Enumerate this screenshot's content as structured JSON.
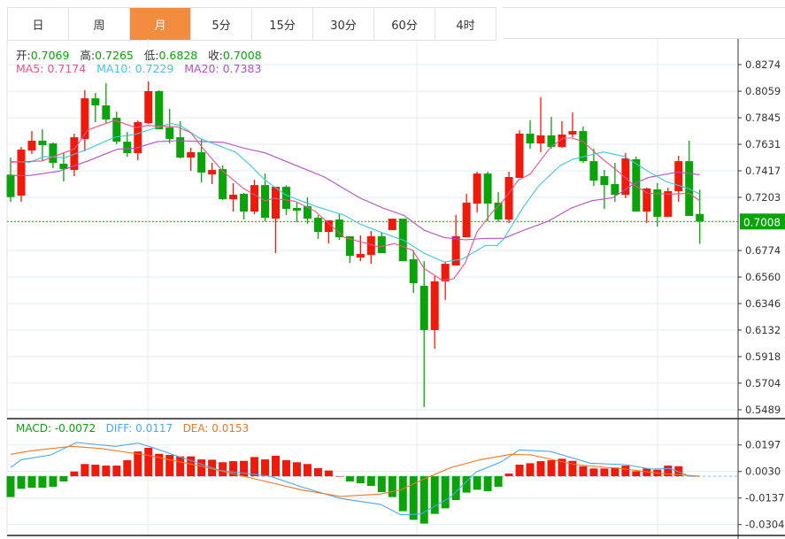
{
  "tabs": [
    {
      "label": "日",
      "active": false
    },
    {
      "label": "周",
      "active": false
    },
    {
      "label": "月",
      "active": true
    },
    {
      "label": "5分",
      "active": false
    },
    {
      "label": "15分",
      "active": false
    },
    {
      "label": "30分",
      "active": false
    },
    {
      "label": "60分",
      "active": false
    },
    {
      "label": "4时",
      "active": false
    }
  ],
  "ohlc_info": {
    "open_label": "开:",
    "open": "0.7069",
    "high_label": "高:",
    "high": "0.7265",
    "low_label": "低:",
    "low": "0.6828",
    "close_label": "收:",
    "close": "0.7008"
  },
  "ma_info": {
    "ma5": "MA5: 0.7174",
    "ma10": "MA10: 0.7229",
    "ma20": "MA20: 0.7383"
  },
  "macd_info": {
    "macd": "MACD: -0.0072",
    "diff": "DIFF: 0.0117",
    "dea": "DEA: 0.0153"
  },
  "colors": {
    "up": "#F01A0A",
    "down": "#0AA30A",
    "ma5": "#F0508C",
    "ma10": "#3CC8DC",
    "ma20": "#B450C8",
    "diff": "#4AA8F0",
    "dea": "#F07820",
    "active_tab": "#F28C3E"
  },
  "chart_data": {
    "type": "candlestick",
    "price_axis": {
      "ticks": [
        "0.8274",
        "0.8059",
        "0.7845",
        "0.7631",
        "0.7417",
        "0.7203",
        "0.6774",
        "0.6560",
        "0.6346",
        "0.6132",
        "0.5918",
        "0.5704",
        "0.5489"
      ],
      "range": [
        0.5489,
        0.8274
      ]
    },
    "current_price": "0.7008",
    "candles": [
      [
        0.7386,
        0.7524,
        0.7167,
        0.7205
      ],
      [
        0.7217,
        0.761,
        0.7167,
        0.7588
      ],
      [
        0.7581,
        0.7738,
        0.7552,
        0.766
      ],
      [
        0.766,
        0.7752,
        0.7495,
        0.7624
      ],
      [
        0.7638,
        0.7645,
        0.7438,
        0.7481
      ],
      [
        0.7474,
        0.756,
        0.7331,
        0.7431
      ],
      [
        0.7424,
        0.7717,
        0.7374,
        0.7688
      ],
      [
        0.7674,
        0.8067,
        0.7574,
        0.8002
      ],
      [
        0.8002,
        0.8045,
        0.781,
        0.7945
      ],
      [
        0.7945,
        0.8124,
        0.7802,
        0.7831
      ],
      [
        0.7845,
        0.7895,
        0.7631,
        0.7652
      ],
      [
        0.7652,
        0.7731,
        0.7531,
        0.756
      ],
      [
        0.756,
        0.7824,
        0.7503,
        0.781
      ],
      [
        0.7802,
        0.8138,
        0.7795,
        0.806
      ],
      [
        0.806,
        0.8067,
        0.7752,
        0.7752
      ],
      [
        0.7767,
        0.7917,
        0.7638,
        0.7674
      ],
      [
        0.7688,
        0.7817,
        0.7517,
        0.7524
      ],
      [
        0.7524,
        0.7603,
        0.7417,
        0.7567
      ],
      [
        0.7567,
        0.7674,
        0.7324,
        0.7403
      ],
      [
        0.7388,
        0.7481,
        0.731,
        0.7424
      ],
      [
        0.7431,
        0.746,
        0.7181,
        0.7188
      ],
      [
        0.7188,
        0.7317,
        0.7088,
        0.7224
      ],
      [
        0.7231,
        0.7238,
        0.7024,
        0.7088
      ],
      [
        0.7088,
        0.7345,
        0.7067,
        0.7302
      ],
      [
        0.7302,
        0.7395,
        0.701,
        0.7038
      ],
      [
        0.7031,
        0.7288,
        0.6753,
        0.7288
      ],
      [
        0.7288,
        0.73,
        0.706,
        0.711
      ],
      [
        0.7117,
        0.7167,
        0.7003,
        0.7095
      ],
      [
        0.7131,
        0.7203,
        0.6989,
        0.7031
      ],
      [
        0.7038,
        0.706,
        0.6867,
        0.6924
      ],
      [
        0.6924,
        0.7017,
        0.6831,
        0.7017
      ],
      [
        0.7024,
        0.7074,
        0.686,
        0.6881
      ],
      [
        0.6889,
        0.6889,
        0.6674,
        0.6731
      ],
      [
        0.6717,
        0.6896,
        0.6688,
        0.6746
      ],
      [
        0.6739,
        0.6931,
        0.6667,
        0.6889
      ],
      [
        0.6889,
        0.6917,
        0.6753,
        0.6753
      ],
      [
        0.6939,
        0.7031,
        0.6939,
        0.7031
      ],
      [
        0.7031,
        0.7031,
        0.6688,
        0.6688
      ],
      [
        0.6703,
        0.6774,
        0.6432,
        0.651
      ],
      [
        0.6489,
        0.6688,
        0.5511,
        0.6132
      ],
      [
        0.6132,
        0.6567,
        0.5982,
        0.6525
      ],
      [
        0.6525,
        0.6681,
        0.6375,
        0.6667
      ],
      [
        0.6653,
        0.706,
        0.6653,
        0.6889
      ],
      [
        0.6881,
        0.7231,
        0.6881,
        0.716
      ],
      [
        0.7153,
        0.741,
        0.7081,
        0.7395
      ],
      [
        0.7395,
        0.741,
        0.701,
        0.7153
      ],
      [
        0.716,
        0.7245,
        0.7003,
        0.7024
      ],
      [
        0.7024,
        0.741,
        0.6996,
        0.7367
      ],
      [
        0.736,
        0.7745,
        0.736,
        0.7717
      ],
      [
        0.7717,
        0.7824,
        0.7595,
        0.7638
      ],
      [
        0.7638,
        0.801,
        0.7567,
        0.7703
      ],
      [
        0.7703,
        0.7852,
        0.7595,
        0.761
      ],
      [
        0.761,
        0.7817,
        0.7603,
        0.771
      ],
      [
        0.771,
        0.7888,
        0.7688,
        0.7738
      ],
      [
        0.7738,
        0.7774,
        0.7481,
        0.7495
      ],
      [
        0.7495,
        0.7595,
        0.7295,
        0.7338
      ],
      [
        0.7374,
        0.7424,
        0.711,
        0.7302
      ],
      [
        0.731,
        0.7481,
        0.7167,
        0.7224
      ],
      [
        0.7224,
        0.756,
        0.7196,
        0.7517
      ],
      [
        0.751,
        0.7531,
        0.7088,
        0.7088
      ],
      [
        0.7088,
        0.7281,
        0.6996,
        0.7274
      ],
      [
        0.7267,
        0.7317,
        0.6967,
        0.7046
      ],
      [
        0.7046,
        0.7281,
        0.7046,
        0.7253
      ],
      [
        0.7253,
        0.7538,
        0.7167,
        0.7495
      ],
      [
        0.7495,
        0.766,
        0.7053,
        0.7053
      ],
      [
        0.7069,
        0.7265,
        0.6828,
        0.7008
      ]
    ],
    "ma5": [
      [
        0,
        0.7486
      ],
      [
        3,
        0.7497
      ],
      [
        5,
        0.7562
      ],
      [
        6,
        0.7593
      ],
      [
        7.3,
        0.7748
      ],
      [
        9.8,
        0.7824
      ],
      [
        11.8,
        0.7767
      ],
      [
        12.9,
        0.7783
      ],
      [
        15.7,
        0.7772
      ],
      [
        17,
        0.7724
      ],
      [
        18.2,
        0.7593
      ],
      [
        20,
        0.7415
      ],
      [
        22,
        0.7272
      ],
      [
        24,
        0.7176
      ],
      [
        24.8,
        0.7195
      ],
      [
        26.8,
        0.7172
      ],
      [
        28.7,
        0.7093
      ],
      [
        31.5,
        0.6879
      ],
      [
        34.8,
        0.6803
      ],
      [
        36.2,
        0.6831
      ],
      [
        37.9,
        0.6777
      ],
      [
        39,
        0.663
      ],
      [
        40.7,
        0.6534
      ],
      [
        41.8,
        0.6546
      ],
      [
        42.9,
        0.6677
      ],
      [
        44,
        0.6926
      ],
      [
        45.4,
        0.7081
      ],
      [
        46.5,
        0.7181
      ],
      [
        47.9,
        0.7343
      ],
      [
        49,
        0.739
      ],
      [
        50.9,
        0.7605
      ],
      [
        52.1,
        0.7681
      ],
      [
        53,
        0.7681
      ],
      [
        54,
        0.7652
      ],
      [
        55.7,
        0.7522
      ],
      [
        57.1,
        0.7426
      ],
      [
        58.7,
        0.7307
      ],
      [
        60.1,
        0.7236
      ],
      [
        62.3,
        0.7229
      ],
      [
        64,
        0.7236
      ],
      [
        65,
        0.7176
      ]
    ],
    "ma10": [
      [
        0,
        0.7493
      ],
      [
        1.8,
        0.7486
      ],
      [
        3.2,
        0.7533
      ],
      [
        5.1,
        0.7522
      ],
      [
        7.3,
        0.7593
      ],
      [
        9.8,
        0.7688
      ],
      [
        11.8,
        0.7712
      ],
      [
        13.8,
        0.7767
      ],
      [
        15.1,
        0.78
      ],
      [
        16,
        0.7783
      ],
      [
        17.9,
        0.7676
      ],
      [
        20.1,
        0.7605
      ],
      [
        21.2,
        0.7569
      ],
      [
        22.6,
        0.7462
      ],
      [
        24,
        0.7343
      ],
      [
        25.9,
        0.7224
      ],
      [
        28.7,
        0.7133
      ],
      [
        31.5,
        0.7057
      ],
      [
        32.9,
        0.699
      ],
      [
        34.8,
        0.6926
      ],
      [
        37.1,
        0.6855
      ],
      [
        39,
        0.6753
      ],
      [
        40.9,
        0.6681
      ],
      [
        42.6,
        0.6705
      ],
      [
        44.8,
        0.6815
      ],
      [
        45.9,
        0.6815
      ],
      [
        46.5,
        0.6867
      ],
      [
        48.4,
        0.7129
      ],
      [
        49.8,
        0.7295
      ],
      [
        51.8,
        0.7457
      ],
      [
        53,
        0.751
      ],
      [
        55.9,
        0.7569
      ],
      [
        57.9,
        0.7533
      ],
      [
        60.1,
        0.7415
      ],
      [
        61.8,
        0.7331
      ],
      [
        64,
        0.7272
      ],
      [
        65,
        0.7229
      ]
    ],
    "ma20": [
      [
        0,
        0.7379
      ],
      [
        1.8,
        0.7379
      ],
      [
        4.6,
        0.7415
      ],
      [
        7.3,
        0.7497
      ],
      [
        10.1,
        0.7593
      ],
      [
        11.8,
        0.76
      ],
      [
        13.8,
        0.7652
      ],
      [
        15.7,
        0.766
      ],
      [
        18.4,
        0.7652
      ],
      [
        20.1,
        0.7647
      ],
      [
        22,
        0.76
      ],
      [
        24,
        0.7562
      ],
      [
        29.6,
        0.7367
      ],
      [
        32.9,
        0.72
      ],
      [
        35.1,
        0.7117
      ],
      [
        37.1,
        0.7057
      ],
      [
        39,
        0.6938
      ],
      [
        40.9,
        0.6879
      ],
      [
        42.9,
        0.686
      ],
      [
        44.8,
        0.6872
      ],
      [
        46.5,
        0.6872
      ],
      [
        48.4,
        0.6938
      ],
      [
        50.7,
        0.701
      ],
      [
        52.9,
        0.7117
      ],
      [
        54.8,
        0.7176
      ],
      [
        56.8,
        0.72
      ],
      [
        58.7,
        0.7307
      ],
      [
        60.1,
        0.7362
      ],
      [
        62.9,
        0.7407
      ],
      [
        65,
        0.7386
      ]
    ],
    "macd_axis": {
      "ticks": [
        "0.0197",
        "0.0030",
        "-0.0137",
        "-0.0304"
      ]
    },
    "macd_hist": [
      -0.0131,
      -0.0079,
      -0.0072,
      -0.0072,
      -0.0066,
      -0.0033,
      0.003,
      0.0077,
      0.0073,
      0.0067,
      0.0067,
      0.0101,
      0.0156,
      0.0179,
      0.0141,
      0.0134,
      0.0125,
      0.0125,
      0.0106,
      0.0104,
      0.0088,
      0.0095,
      0.0097,
      0.0121,
      0.0106,
      0.0129,
      0.0101,
      0.0088,
      0.0077,
      0.0051,
      0.0036,
      0,
      -0.0033,
      -0.0044,
      -0.0061,
      -0.01,
      -0.0131,
      -0.022,
      -0.0274,
      -0.0298,
      -0.0237,
      -0.0202,
      -0.015,
      -0.0103,
      -0.0085,
      -0.0094,
      -0.0066,
      0.0017,
      0.0073,
      0.0082,
      0.0095,
      0.0101,
      0.011,
      0.0097,
      0.0063,
      0.0049,
      0.0049,
      0.0055,
      0.0067,
      0.0032,
      0.0049,
      0.0041,
      0.0067,
      0.0063,
      null,
      null
    ],
    "diff": [
      [
        0,
        0.0055
      ],
      [
        1,
        0.0104
      ],
      [
        3.8,
        0.0134
      ],
      [
        6.2,
        0.0212
      ],
      [
        9.9,
        0.0188
      ],
      [
        12,
        0.0208
      ],
      [
        13.2,
        0.0185
      ],
      [
        15.6,
        0.0129
      ],
      [
        19.8,
        0.0036
      ],
      [
        24.5,
        0.0
      ],
      [
        27.4,
        -0.0066
      ],
      [
        31.1,
        -0.014
      ],
      [
        34.9,
        -0.0177
      ],
      [
        36.8,
        -0.0243
      ],
      [
        38.7,
        -0.0238
      ],
      [
        41.5,
        -0.0131
      ],
      [
        43.9,
        0.0026
      ],
      [
        46.2,
        0.0088
      ],
      [
        48,
        0.0166
      ],
      [
        50.9,
        0.0156
      ],
      [
        54.7,
        0.0082
      ],
      [
        58,
        0.0073
      ],
      [
        60.4,
        0.0045
      ],
      [
        62.2,
        0.0049
      ],
      [
        64.1,
        0.0
      ],
      [
        65,
        0.0
      ]
    ],
    "dea": [
      [
        0,
        0.0138
      ],
      [
        1.9,
        0.016
      ],
      [
        5.7,
        0.0188
      ],
      [
        8.5,
        0.0175
      ],
      [
        13.2,
        0.0129
      ],
      [
        18,
        0.0063
      ],
      [
        22.7,
        -0.0011
      ],
      [
        27.4,
        -0.0085
      ],
      [
        31.1,
        -0.0127
      ],
      [
        34.9,
        -0.0112
      ],
      [
        36.8,
        -0.0085
      ],
      [
        39.2,
        -0.0011
      ],
      [
        41.5,
        0.0054
      ],
      [
        44.3,
        0.0104
      ],
      [
        47.2,
        0.0138
      ],
      [
        49.1,
        0.0134
      ],
      [
        53.3,
        0.0073
      ],
      [
        58,
        0.0045
      ],
      [
        61.3,
        0.0017
      ],
      [
        65,
        0.0
      ]
    ]
  }
}
